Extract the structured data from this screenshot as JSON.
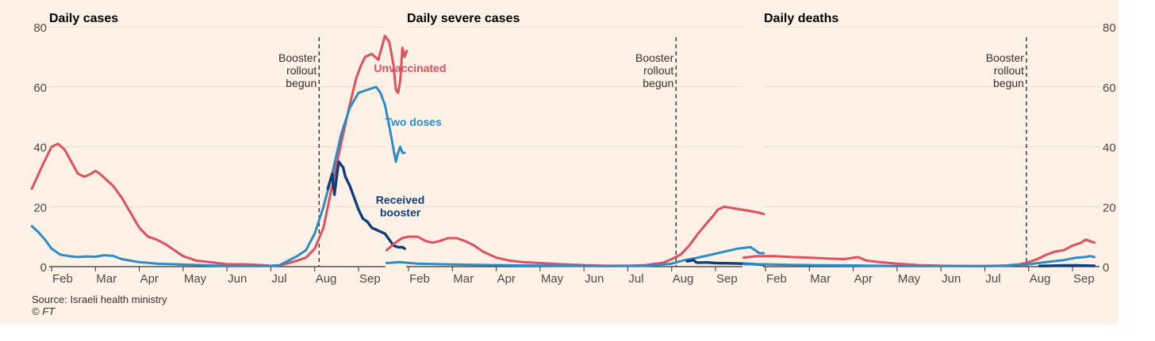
{
  "footer": {
    "source": "Source: Israeli health ministry",
    "copyright": "© FT"
  },
  "colors": {
    "unvaccinated": "#e0505d",
    "two_doses": "#2a8cc9",
    "booster": "#0f3f7a",
    "background": "#fff1e5",
    "grid": "#e6d9ce",
    "text": "#33302e"
  },
  "chart_data": [
    {
      "type": "line",
      "title": "Daily cases",
      "ylim": [
        0,
        80
      ],
      "yticks": [
        0,
        20,
        40,
        60,
        80
      ],
      "ytick_labels": [
        "0",
        "20",
        "40",
        "60",
        "80"
      ],
      "xticks": [
        "Feb",
        "Mar",
        "Apr",
        "May",
        "Jun",
        "Jul",
        "Aug",
        "Sep"
      ],
      "annotation": {
        "x": 7.1,
        "lines": [
          "Booster",
          "rollout",
          "begun"
        ]
      },
      "series": [
        {
          "key": "unvaccinated",
          "name": "Unvaccinated",
          "x": [
            0.55,
            0.8,
            1.0,
            1.15,
            1.3,
            1.45,
            1.6,
            1.75,
            1.9,
            2.0,
            2.1,
            2.25,
            2.4,
            2.6,
            2.8,
            3.0,
            3.2,
            3.4,
            3.6,
            3.8,
            4.0,
            4.3,
            4.6,
            5.0,
            5.4,
            5.8,
            6.0,
            6.2,
            6.4,
            6.6,
            6.8,
            7.0,
            7.2,
            7.4,
            7.6,
            7.8,
            7.95,
            8.05,
            8.15,
            8.3,
            8.45,
            8.6,
            8.7,
            8.8,
            8.85,
            8.9,
            8.95,
            9.0,
            9.05,
            9.1
          ],
          "values": [
            26,
            34,
            40,
            41,
            39,
            35,
            31,
            30,
            31,
            32,
            31,
            29,
            27,
            23,
            18,
            13,
            10,
            9,
            7.5,
            5.5,
            3.5,
            2,
            1.5,
            0.8,
            0.8,
            0.5,
            0.3,
            0.4,
            1.2,
            2,
            3,
            6,
            13,
            27,
            41,
            54,
            63,
            67,
            70,
            71,
            69,
            77,
            75,
            67,
            59,
            58,
            62,
            73,
            70,
            72
          ]
        },
        {
          "key": "two_doses",
          "name": "Two doses",
          "x": [
            0.55,
            0.7,
            0.85,
            1.0,
            1.2,
            1.4,
            1.6,
            1.8,
            2.0,
            2.2,
            2.4,
            2.6,
            2.8,
            3.0,
            3.4,
            3.8,
            4.2,
            4.6,
            5.0,
            5.4,
            5.8,
            6.0,
            6.2,
            6.4,
            6.6,
            6.8,
            7.0,
            7.2,
            7.4,
            7.6,
            7.8,
            8.0,
            8.2,
            8.4,
            8.5,
            8.6,
            8.7,
            8.8,
            8.85,
            8.9,
            8.95,
            9.0,
            9.05
          ],
          "values": [
            13.5,
            11.5,
            9,
            6,
            4,
            3.5,
            3.2,
            3.4,
            3.3,
            3.8,
            3.6,
            2.5,
            2,
            1.5,
            1,
            0.8,
            0.6,
            0.4,
            0.2,
            0.2,
            0.2,
            0.3,
            0.5,
            2,
            3.5,
            5.5,
            11,
            20,
            31,
            44,
            53,
            58,
            59,
            60,
            58,
            54,
            47,
            39,
            35,
            38,
            40,
            38,
            38
          ]
        },
        {
          "key": "booster",
          "name": "Received booster",
          "x": [
            7.3,
            7.4,
            7.45,
            7.5,
            7.55,
            7.6,
            7.65,
            7.7,
            7.8,
            7.9,
            8.0,
            8.1,
            8.2,
            8.3,
            8.45,
            8.6,
            8.7,
            8.8,
            8.9,
            9.0,
            9.05
          ],
          "values": [
            26,
            31,
            24,
            30,
            35,
            34,
            33,
            30,
            27,
            23,
            19,
            16,
            15,
            13,
            12,
            11,
            9,
            7,
            6.5,
            6.5,
            6
          ]
        }
      ],
      "labels": [
        {
          "key": "unvaccinated",
          "lines": [
            "Unvaccinated"
          ],
          "x": 8.35,
          "y": 65,
          "anchor": "start"
        },
        {
          "key": "two_doses",
          "lines": [
            "Two doses"
          ],
          "x": 9.25,
          "y": 47,
          "anchor": "middle"
        },
        {
          "key": "booster",
          "lines": [
            "Received",
            "booster"
          ],
          "x": 8.95,
          "y": 21,
          "anchor": "middle"
        }
      ]
    },
    {
      "type": "line",
      "title": "Daily severe cases",
      "ylim": [
        0,
        80
      ],
      "yticks": [
        0,
        20,
        40,
        60,
        80
      ],
      "xticks": [
        "Feb",
        "Mar",
        "Apr",
        "May",
        "Jun",
        "Jul",
        "Aug",
        "Sep"
      ],
      "annotation": {
        "x": 7.1,
        "lines": [
          "Booster",
          "rollout",
          "begun"
        ]
      },
      "series": [
        {
          "key": "unvaccinated",
          "name": "Unvaccinated",
          "x": [
            0.5,
            0.7,
            0.85,
            1.0,
            1.2,
            1.4,
            1.55,
            1.7,
            1.9,
            2.1,
            2.3,
            2.5,
            2.7,
            3.0,
            3.3,
            3.6,
            4.0,
            4.5,
            5.0,
            5.5,
            6.0,
            6.4,
            6.8,
            7.0,
            7.2,
            7.4,
            7.6,
            7.8,
            7.95,
            8.05,
            8.2,
            8.4,
            8.6,
            8.8,
            9.0,
            9.1
          ],
          "values": [
            5.5,
            8,
            9.5,
            10,
            10,
            8.5,
            8,
            8.5,
            9.5,
            9.5,
            8.5,
            7,
            5,
            3,
            2,
            1.5,
            1.2,
            0.8,
            0.5,
            0.3,
            0.3,
            0.5,
            1.3,
            2.5,
            4,
            7,
            11,
            14.5,
            17,
            19,
            20,
            19.5,
            19,
            18.5,
            18,
            17.5
          ]
        },
        {
          "key": "two_doses",
          "name": "Two doses",
          "x": [
            0.5,
            0.8,
            1.2,
            1.8,
            2.5,
            3.5,
            4.5,
            5.5,
            6.5,
            7.0,
            7.3,
            7.6,
            7.9,
            8.2,
            8.5,
            8.8,
            9.0,
            9.1
          ],
          "values": [
            1.2,
            1.5,
            1.0,
            0.8,
            0.6,
            0.4,
            0.3,
            0.2,
            0.3,
            1.0,
            2.2,
            3,
            4,
            5,
            6,
            6.5,
            4.5,
            4.5
          ]
        },
        {
          "key": "booster",
          "name": "Received booster",
          "x": [
            7.35,
            7.45,
            7.5,
            7.55,
            7.6,
            7.8,
            8.0,
            8.3,
            8.6,
            8.9,
            9.1
          ],
          "values": [
            1.8,
            2.0,
            2.2,
            1.5,
            1.3,
            1.4,
            1.2,
            1.1,
            1.0,
            0.8,
            0.6
          ]
        }
      ]
    },
    {
      "type": "line",
      "title": "Daily deaths",
      "ylim": [
        0,
        80
      ],
      "yticks": [
        0,
        20,
        40,
        60,
        80
      ],
      "ytick_labels": [
        "0",
        "20",
        "40",
        "60",
        "80"
      ],
      "xticks": [
        "Feb",
        "Mar",
        "Apr",
        "May",
        "Jun",
        "Jul",
        "Aug",
        "Sep"
      ],
      "annotation": {
        "x": 6.95,
        "lines": [
          "Booster",
          "rollout",
          "begun"
        ]
      },
      "series": [
        {
          "key": "unvaccinated",
          "name": "Unvaccinated",
          "x": [
            0.5,
            0.8,
            1.2,
            1.6,
            2.0,
            2.4,
            2.8,
            3.1,
            3.3,
            3.6,
            4.0,
            4.5,
            5.0,
            5.5,
            6.0,
            6.5,
            6.8,
            7.0,
            7.2,
            7.4,
            7.6,
            7.8,
            8.0,
            8.2,
            8.3,
            8.4,
            8.5
          ],
          "values": [
            3,
            3.5,
            3.5,
            3.2,
            3,
            2.7,
            2.5,
            3.2,
            2,
            1.5,
            1,
            0.5,
            0.3,
            0.2,
            0.2,
            0.4,
            0.8,
            1.5,
            2.5,
            4,
            5,
            5.5,
            7,
            8,
            9,
            8.5,
            8
          ]
        },
        {
          "key": "two_doses",
          "name": "Two doses",
          "x": [
            0.5,
            1.0,
            1.5,
            2.0,
            3.0,
            4.0,
            5.0,
            6.0,
            6.5,
            7.0,
            7.4,
            7.8,
            8.1,
            8.3,
            8.4,
            8.5
          ],
          "values": [
            0.8,
            0.8,
            0.6,
            0.5,
            0.4,
            0.2,
            0.2,
            0.2,
            0.3,
            0.8,
            1.5,
            2.2,
            3,
            3.2,
            3.5,
            3.2
          ]
        },
        {
          "key": "booster",
          "name": "Received booster",
          "x": [
            7.25,
            7.5,
            7.8,
            8.1,
            8.5
          ],
          "values": [
            0.2,
            0.3,
            0.4,
            0.4,
            0.3
          ]
        }
      ]
    }
  ]
}
